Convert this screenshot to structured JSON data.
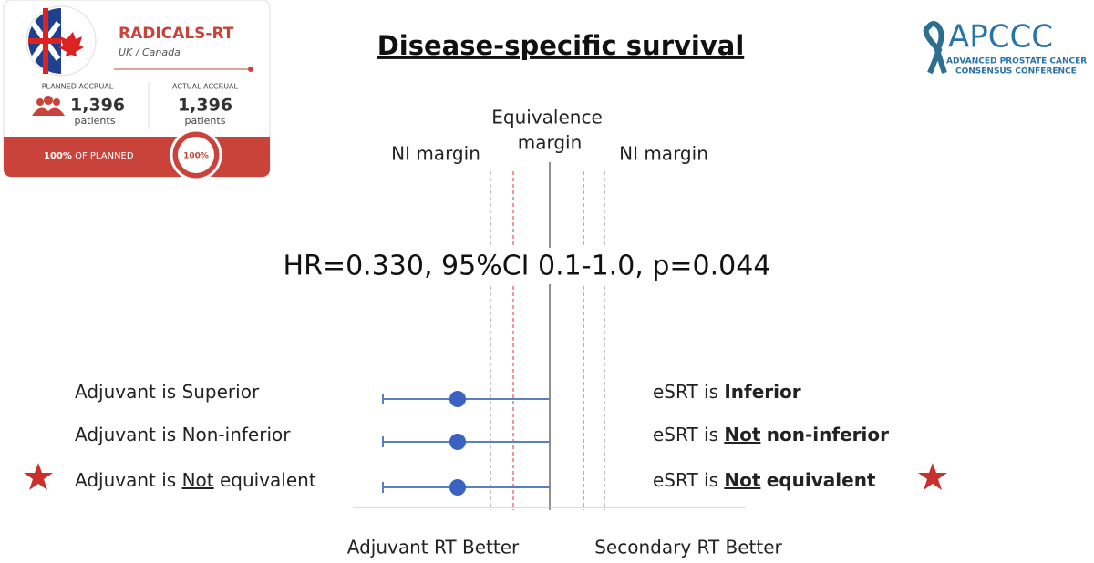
{
  "card": {
    "title": "RADICALS-RT",
    "subtitle": "UK / Canada",
    "planned": {
      "label": "PLANNED ACCRUAL",
      "number": "1,396",
      "unit": "patients"
    },
    "actual": {
      "label": "ACTUAL ACCRUAL",
      "number": "1,396",
      "unit": "patients"
    },
    "footer": {
      "strong": "100%",
      "rest": "OF PLANNED"
    },
    "badge": "100%"
  },
  "logo": {
    "name": "APCCC",
    "line1": "ADVANCED PROSTATE CANCER",
    "line2": "CONSENSUS CONFERENCE"
  },
  "title": "Disease-specific survival",
  "margins": {
    "left": "NI margin",
    "center": [
      "Equivalence",
      "margin"
    ],
    "right": "NI margin"
  },
  "stat": "HR=0.330, 95%CI 0.1-1.0, p=0.044",
  "left_rows": [
    {
      "prefix": "Adjuvant is",
      "term": "Superior"
    },
    {
      "prefix": "Adjuvant is",
      "term": "Non-inferior"
    },
    {
      "prefix": "Adjuvant is",
      "underlined": "Not",
      "term": "equivalent"
    }
  ],
  "right_rows": [
    {
      "prefix": "eSRT is",
      "term": "Inferior"
    },
    {
      "prefix": "eSRT is",
      "underlined": "Not",
      "term": "non-inferior"
    },
    {
      "prefix": "eSRT is",
      "underlined": "Not",
      "term": "equivalent"
    }
  ],
  "axis": {
    "left": "Adjuvant RT Better",
    "right": "Secondary RT Better"
  }
}
